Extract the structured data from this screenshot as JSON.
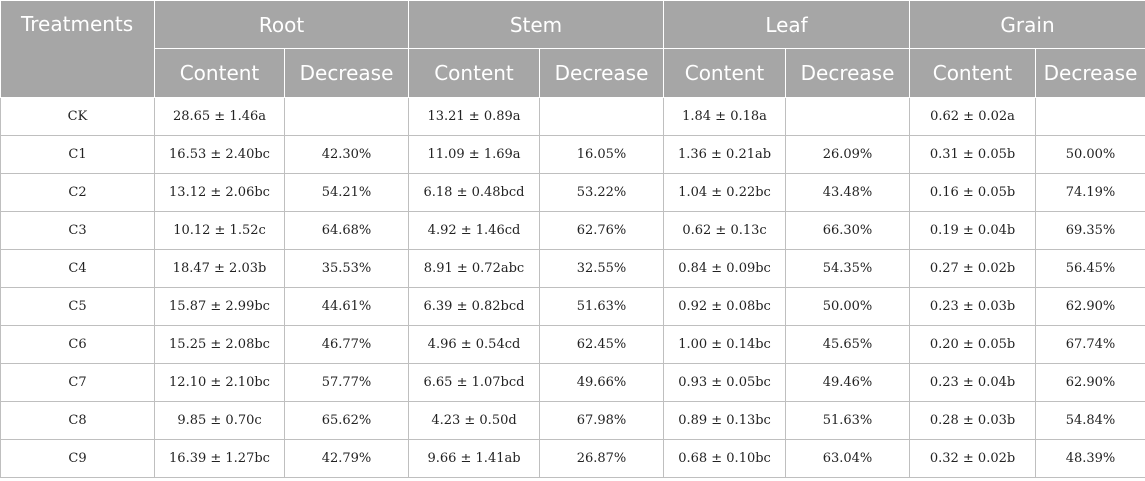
{
  "header": {
    "treatments": "Treatments",
    "groups": [
      "Root",
      "Stem",
      "Leaf",
      "Grain"
    ],
    "sub": [
      "Content",
      "Decrease"
    ]
  },
  "rows": [
    {
      "t": "CK",
      "cells": [
        "28.65 ± 1.46a",
        "",
        "13.21 ± 0.89a",
        "",
        "1.84 ± 0.18a",
        "",
        "0.62 ± 0.02a",
        ""
      ]
    },
    {
      "t": "C1",
      "cells": [
        "16.53 ± 2.40bc",
        "42.30%",
        "11.09 ± 1.69a",
        "16.05%",
        "1.36 ± 0.21ab",
        "26.09%",
        "0.31 ± 0.05b",
        "50.00%"
      ]
    },
    {
      "t": "C2",
      "cells": [
        "13.12 ± 2.06bc",
        "54.21%",
        "6.18 ± 0.48bcd",
        "53.22%",
        "1.04 ± 0.22bc",
        "43.48%",
        "0.16 ± 0.05b",
        "74.19%"
      ]
    },
    {
      "t": "C3",
      "cells": [
        "10.12 ± 1.52c",
        "64.68%",
        "4.92 ± 1.46cd",
        "62.76%",
        "0.62 ± 0.13c",
        "66.30%",
        "0.19 ± 0.04b",
        "69.35%"
      ]
    },
    {
      "t": "C4",
      "cells": [
        "18.47 ± 2.03b",
        "35.53%",
        "8.91 ± 0.72abc",
        "32.55%",
        "0.84 ± 0.09bc",
        "54.35%",
        "0.27 ± 0.02b",
        "56.45%"
      ]
    },
    {
      "t": "C5",
      "cells": [
        "15.87 ± 2.99bc",
        "44.61%",
        "6.39 ± 0.82bcd",
        "51.63%",
        "0.92 ± 0.08bc",
        "50.00%",
        "0.23 ± 0.03b",
        "62.90%"
      ]
    },
    {
      "t": "C6",
      "cells": [
        "15.25 ± 2.08bc",
        "46.77%",
        "4.96 ± 0.54cd",
        "62.45%",
        "1.00 ± 0.14bc",
        "45.65%",
        "0.20 ± 0.05b",
        "67.74%"
      ]
    },
    {
      "t": "C7",
      "cells": [
        "12.10 ± 2.10bc",
        "57.77%",
        "6.65 ± 1.07bcd",
        "49.66%",
        "0.93 ± 0.05bc",
        "49.46%",
        "0.23 ± 0.04b",
        "62.90%"
      ]
    },
    {
      "t": "C8",
      "cells": [
        "9.85 ± 0.70c",
        "65.62%",
        "4.23 ± 0.50d",
        "67.98%",
        "0.89 ± 0.13bc",
        "51.63%",
        "0.28 ± 0.03b",
        "54.84%"
      ]
    },
    {
      "t": "C9",
      "cells": [
        "16.39 ± 1.27bc",
        "42.79%",
        "9.66 ± 1.41ab",
        "26.87%",
        "0.68 ± 0.10bc",
        "63.04%",
        "0.32 ± 0.02b",
        "48.39%"
      ]
    }
  ]
}
